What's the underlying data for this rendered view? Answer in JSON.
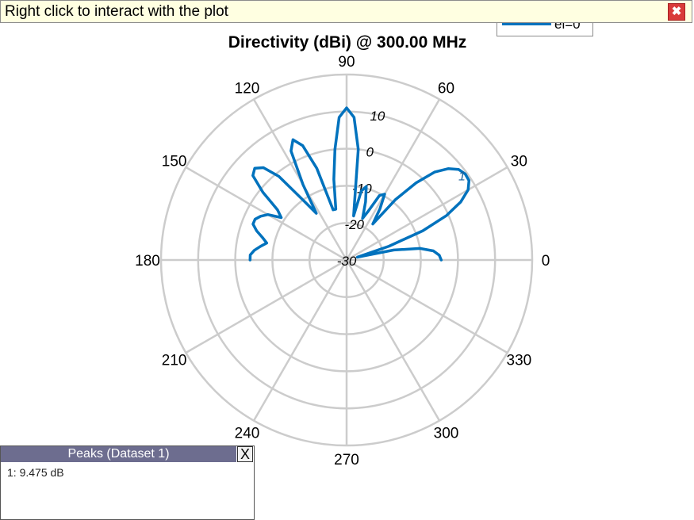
{
  "banner": {
    "text": "Right click to interact with the plot",
    "close_glyph": "✖"
  },
  "legend": {
    "label": "el=0°",
    "color": "#0072bd"
  },
  "peaks_panel": {
    "title": "Peaks (Dataset 1)",
    "close_label": "X",
    "rows": [
      "1: 9.475 dB"
    ]
  },
  "chart_data": {
    "type": "polar",
    "title": "Directivity (dBi) @ 300.00 MHz",
    "r_range": [
      -30,
      20
    ],
    "r_ticks": [
      -30,
      -20,
      -10,
      0,
      10
    ],
    "r_tick_labels": [
      "-30",
      "-20",
      "-10",
      "0",
      "10"
    ],
    "angle_ticks": [
      0,
      30,
      60,
      90,
      120,
      150,
      180,
      210,
      240,
      270,
      300,
      330
    ],
    "angle_tick_labels": [
      "0",
      "30",
      "60",
      "90",
      "120",
      "150",
      "180",
      "210",
      "240",
      "270",
      "300",
      "330"
    ],
    "grid": true,
    "legend_position": "top-right",
    "series": [
      {
        "name": "el=0°",
        "color": "#0072bd",
        "angle_deg": [
          0,
          3,
          6,
          9,
          12,
          15,
          18,
          21,
          24,
          27,
          30,
          33,
          36,
          39,
          42,
          45,
          48,
          51,
          54,
          57,
          60,
          63,
          66,
          69,
          72,
          75,
          78,
          81,
          84,
          87,
          90,
          93,
          96,
          99,
          102,
          105,
          108,
          111,
          114,
          117,
          120,
          123,
          126,
          129,
          132,
          135,
          138,
          141,
          144,
          147,
          150,
          153,
          156,
          159,
          162,
          165,
          168,
          171,
          174,
          177,
          180
        ],
        "r_dbi": [
          -4.5,
          -5.0,
          -6.5,
          -10.0,
          -17.0,
          -27.0,
          -18.0,
          -8.0,
          -0.5,
          4.5,
          7.8,
          9.3,
          9.475,
          8.8,
          6.8,
          3.5,
          -2.0,
          -9.0,
          -18.0,
          -13.5,
          -9.5,
          -10.5,
          -15.5,
          -18.0,
          -13.5,
          -9.5,
          -11.0,
          -18.0,
          0.0,
          8.5,
          11.0,
          8.5,
          0.0,
          -8.0,
          -16.0,
          -16.0,
          -4.0,
          3.0,
          5.5,
          3.0,
          -6.5,
          -15.0,
          -10.0,
          -1.0,
          3.5,
          5.0,
          4.0,
          -1.0,
          -7.0,
          -9.0,
          -5.5,
          -4.0,
          -3.0,
          -3.0,
          -4.5,
          -6.5,
          -8.0,
          -6.5,
          -5.0,
          -4.0,
          -4.0
        ]
      }
    ],
    "annotations": [
      {
        "label": "1",
        "angle_deg": 36,
        "r_dbi": 9.475
      }
    ]
  }
}
